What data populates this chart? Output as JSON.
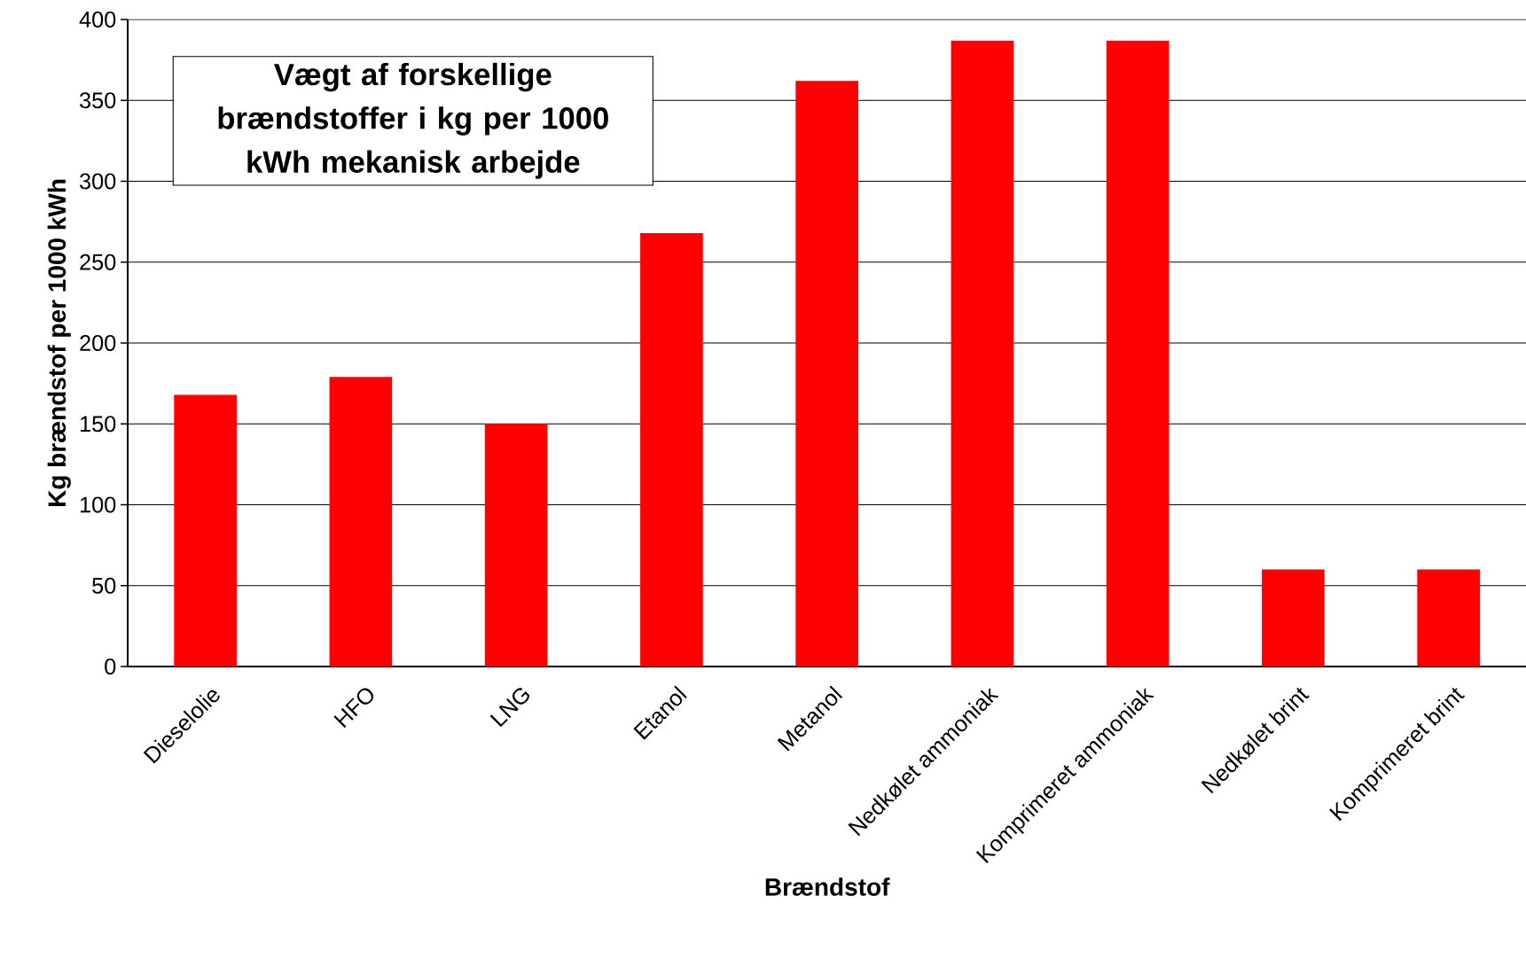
{
  "chart_data": {
    "type": "bar",
    "title": "Vægt af forskellige brændstoffer i kg per 1000 kWh mekanisk arbejde",
    "xlabel": "Brændstof",
    "ylabel": "Kg brændstof per 1000 kWh",
    "categories": [
      "Dieselolie",
      "HFO",
      "LNG",
      "Etanol",
      "Metanol",
      "Nedkølet ammoniak",
      "Komprimeret ammoniak",
      "Nedkølet brint",
      "Komprimeret brint"
    ],
    "values": [
      168,
      179,
      150,
      268,
      362,
      387,
      387,
      60,
      60
    ],
    "color": "#ff0000",
    "ylim": [
      0,
      400
    ],
    "yticks": [
      0,
      50,
      100,
      150,
      200,
      250,
      300,
      350,
      400
    ],
    "grid": "y"
  }
}
